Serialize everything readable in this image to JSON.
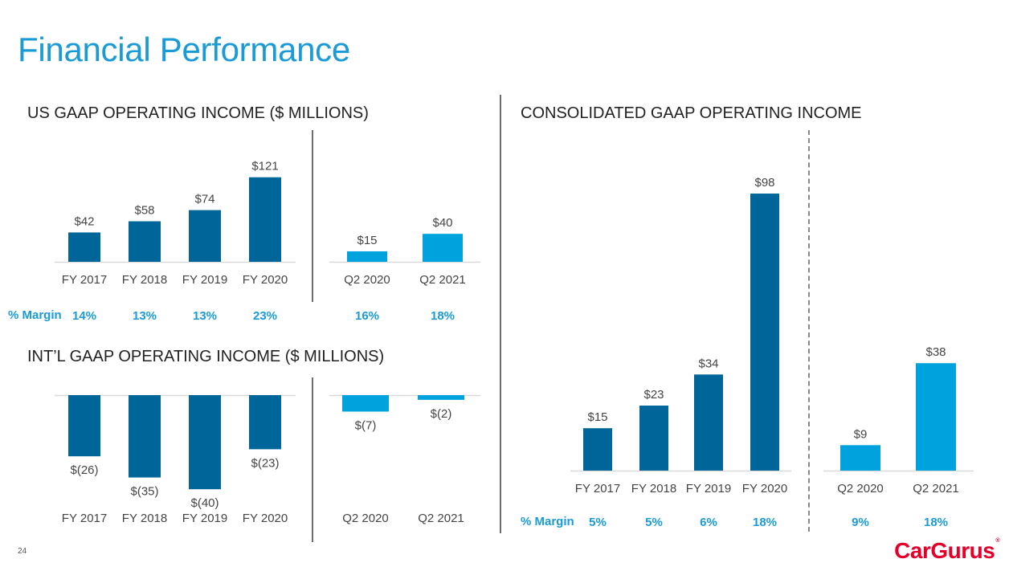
{
  "page": {
    "title": "Financial Performance",
    "page_number": "24",
    "logo_text": "CarGurus",
    "margin_label": "% Margin"
  },
  "colors": {
    "annual": "#00669a",
    "quarterly": "#00a2dd",
    "accent": "#1a9bd7",
    "logo": "#e4002b"
  },
  "chart_data": [
    {
      "id": "us",
      "type": "bar",
      "title": "US GAAP OPERATING INCOME ($ MILLIONS)",
      "groups": [
        {
          "categories": [
            "FY 2017",
            "FY 2018",
            "FY 2019",
            "FY 2020"
          ],
          "values": [
            42,
            58,
            74,
            121
          ],
          "labels": [
            "$42",
            "$58",
            "$74",
            "$121"
          ],
          "margins": [
            "14%",
            "13%",
            "13%",
            "23%"
          ]
        },
        {
          "categories": [
            "Q2 2020",
            "Q2 2021"
          ],
          "values": [
            15,
            40
          ],
          "labels": [
            "$15",
            "$40"
          ],
          "margins": [
            "16%",
            "18%"
          ]
        }
      ],
      "unit": "$ millions"
    },
    {
      "id": "intl",
      "type": "bar",
      "title": "INT’L GAAP OPERATING INCOME ($ MILLIONS)",
      "groups": [
        {
          "categories": [
            "FY 2017",
            "FY 2018",
            "FY 2019",
            "FY 2020"
          ],
          "values": [
            -26,
            -35,
            -40,
            -23
          ],
          "labels": [
            "$(26)",
            "$(35)",
            "$(40)",
            "$(23)"
          ]
        },
        {
          "categories": [
            "Q2 2020",
            "Q2 2021"
          ],
          "values": [
            -7,
            -2
          ],
          "labels": [
            "$(7)",
            "$(2)"
          ]
        }
      ],
      "unit": "$ millions"
    },
    {
      "id": "cons",
      "type": "bar",
      "title": "CONSOLIDATED GAAP OPERATING INCOME",
      "groups": [
        {
          "categories": [
            "FY 2017",
            "FY 2018",
            "FY 2019",
            "FY 2020"
          ],
          "values": [
            15,
            23,
            34,
            98
          ],
          "labels": [
            "$15",
            "$23",
            "$34",
            "$98"
          ],
          "margins": [
            "5%",
            "5%",
            "6%",
            "18%"
          ]
        },
        {
          "categories": [
            "Q2 2020",
            "Q2 2021"
          ],
          "values": [
            9,
            38
          ],
          "labels": [
            "$9",
            "$38"
          ],
          "margins": [
            "9%",
            "18%"
          ]
        }
      ],
      "unit": "$ millions"
    }
  ]
}
